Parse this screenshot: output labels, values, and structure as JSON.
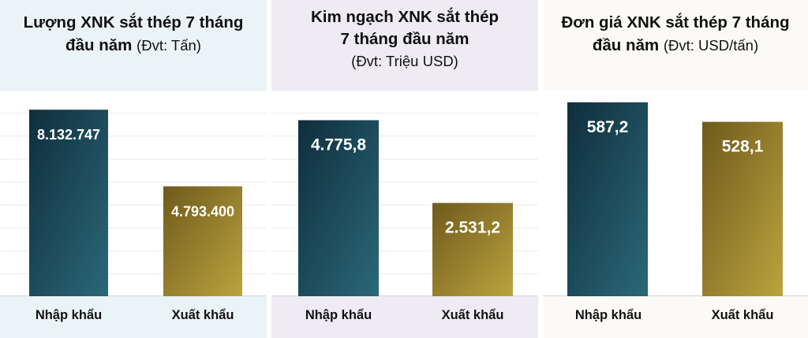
{
  "chart_data": [
    {
      "type": "bar",
      "title": "Lượng XNK sắt thép 7 tháng đầu năm",
      "title_lines": [
        "Lượng XNK sắt thép 7 tháng",
        "đầu năm"
      ],
      "unit": "(Đvt: Tấn)",
      "categories": [
        "Nhập khẩu",
        "Xuất khẩu"
      ],
      "values": [
        8132747,
        4793400
      ],
      "value_labels": [
        "8.132.747",
        "4.793.400"
      ],
      "ylim": [
        0,
        9000000
      ],
      "grid": true,
      "colors": [
        "#143f50",
        "#9b8530"
      ],
      "panel_bg": "#eaf3f6"
    },
    {
      "type": "bar",
      "title": "Kim ngạch XNK sắt thép 7 tháng đầu năm",
      "title_lines": [
        "Kim ngạch XNK sắt thép",
        "7 tháng đầu năm"
      ],
      "unit": "(Đvt: Triệu USD)",
      "categories": [
        "Nhập khẩu",
        "Xuất khẩu"
      ],
      "values": [
        4775.8,
        2531.2
      ],
      "value_labels": [
        "4.775,8",
        "2.531,2"
      ],
      "ylim": [
        0,
        5600
      ],
      "grid": true,
      "colors": [
        "#143f50",
        "#9b8530"
      ],
      "panel_bg": "#efebf3"
    },
    {
      "type": "bar",
      "title": "Đơn giá XNK sắt thép 7 tháng đầu năm",
      "title_lines": [
        "Đơn giá XNK sắt thép 7 tháng",
        "đầu năm"
      ],
      "unit": "(Đvt: USD/tấn)",
      "categories": [
        "Nhập khẩu",
        "Xuất khẩu"
      ],
      "values": [
        587.2,
        528.1
      ],
      "value_labels": [
        "587,2",
        "528,1"
      ],
      "ylim": [
        0,
        625
      ],
      "grid": false,
      "colors": [
        "#143f50",
        "#9b8530"
      ],
      "panel_bg": "#fcfaf6"
    }
  ]
}
